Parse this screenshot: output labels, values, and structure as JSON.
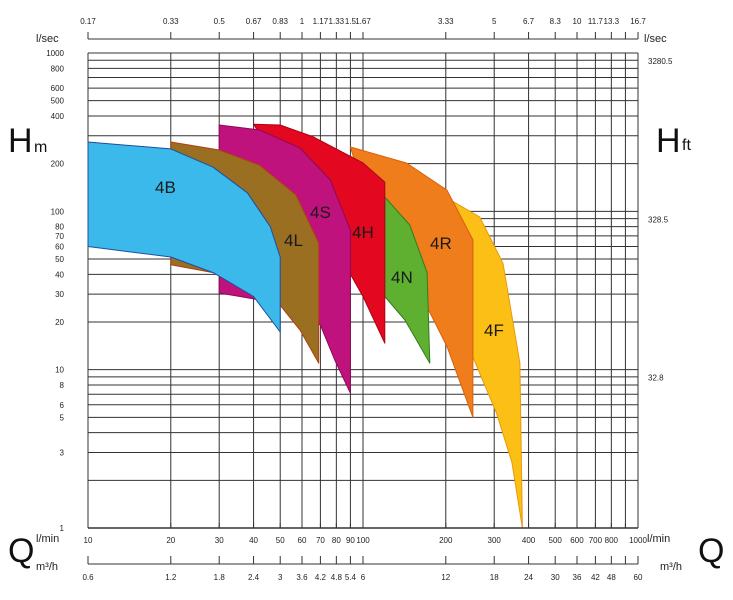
{
  "chart_data": {
    "type": "area",
    "title": "",
    "xscale": "log",
    "yscale": "log",
    "xlim": [
      10,
      1000
    ],
    "ylim": [
      1,
      1000
    ],
    "grid": true,
    "x_axis_bottom": {
      "unit": "l/min",
      "ticks": [
        10,
        20,
        30,
        40,
        50,
        60,
        70,
        80,
        90,
        100,
        200,
        300,
        400,
        500,
        600,
        700,
        800,
        900,
        1000
      ],
      "labels": [
        "10",
        "20",
        "30",
        "40",
        "50",
        "60",
        "70",
        "80",
        "90",
        "100",
        "200",
        "300",
        "400",
        "500",
        "600",
        "700",
        "800",
        "",
        "1000"
      ]
    },
    "x_axis_m3h": {
      "unit": "m³/h",
      "labels": [
        "0.6",
        "1.2",
        "1.8",
        "2.4",
        "3",
        "3.6",
        "4.2",
        "4.8",
        "5.4",
        "6",
        "12",
        "18",
        "24",
        "30",
        "36",
        "42",
        "48",
        "",
        "60"
      ]
    },
    "x_axis_top": {
      "unit": "l/sec",
      "labels": [
        "0.17",
        "0.33",
        "0.5",
        "0.67",
        "0.83",
        "1",
        "1.17",
        "1.33",
        "1.5",
        "1.67",
        "3.33",
        "5",
        "6.7",
        "8.3",
        "10",
        "11.7",
        "13.3",
        "",
        "16.7"
      ]
    },
    "y_axis_left": {
      "symbol": "H",
      "unit": "m",
      "ticks": [
        1000,
        800,
        600,
        500,
        400,
        200,
        100,
        80,
        70,
        60,
        50,
        40,
        30,
        20,
        10,
        8,
        6,
        5,
        3,
        1
      ],
      "labels": [
        "1000",
        "800",
        "600",
        "500",
        "400",
        "200",
        "100",
        "80",
        "70",
        "60",
        "50",
        "40",
        "30",
        "20",
        "10",
        "8",
        "6",
        "5",
        "3",
        "1"
      ]
    },
    "y_axis_right": {
      "symbol": "H",
      "unit": "ft",
      "ticks": [
        1000,
        100,
        10
      ],
      "labels": [
        "3280.5",
        "328.5",
        "32.8"
      ]
    },
    "q_symbol": "Q",
    "series": [
      {
        "name": "4F",
        "color": "#fbbf16",
        "stroke": "#e89a0c",
        "points": [
          [
            213,
            115
          ],
          [
            266,
            92
          ],
          [
            323,
            47
          ],
          [
            372,
            11
          ],
          [
            380,
            1
          ],
          [
            348,
            2.6
          ],
          [
            306,
            5.3
          ],
          [
            251,
            12
          ],
          [
            251,
            66
          ],
          [
            225,
            95
          ]
        ]
      },
      {
        "name": "4R",
        "color": "#ef7d1b",
        "stroke": "#d8600f",
        "points": [
          [
            90,
            255
          ],
          [
            144,
            202
          ],
          [
            202,
            136
          ],
          [
            251,
            66
          ],
          [
            251,
            5
          ],
          [
            202,
            14
          ],
          [
            175,
            23
          ],
          [
            136,
            37
          ],
          [
            120,
            49
          ]
        ]
      },
      {
        "name": "4N",
        "color": "#5fb030",
        "stroke": "#2f7d1e",
        "points": [
          [
            120,
            123
          ],
          [
            148,
            82
          ],
          [
            171,
            41
          ],
          [
            175,
            11
          ],
          [
            142,
            20.6
          ],
          [
            120,
            29
          ]
        ]
      },
      {
        "name": "4H",
        "color": "#e3071f",
        "stroke": "#a80615",
        "points": [
          [
            40,
            355
          ],
          [
            50,
            351
          ],
          [
            66,
            295
          ],
          [
            100,
            202
          ],
          [
            120,
            153
          ],
          [
            120,
            14.7
          ],
          [
            100,
            29
          ],
          [
            90,
            40
          ],
          [
            76,
            57
          ]
        ]
      },
      {
        "name": "4S",
        "color": "#c0127c",
        "stroke": "#8c0a58",
        "points": [
          [
            30,
            351
          ],
          [
            42,
            327
          ],
          [
            59,
            251
          ],
          [
            76,
            158
          ],
          [
            90,
            76
          ],
          [
            90,
            7.1
          ],
          [
            79,
            11.5
          ],
          [
            70,
            19.1
          ],
          [
            54,
            25.5
          ],
          [
            35.7,
            29
          ],
          [
            30,
            30.5
          ]
        ]
      },
      {
        "name": "4L",
        "color": "#9a6f22",
        "stroke": "#b0400f",
        "points": [
          [
            20,
            274
          ],
          [
            30,
            244
          ],
          [
            42,
            196
          ],
          [
            57,
            127
          ],
          [
            69,
            63
          ],
          [
            69,
            11
          ],
          [
            59,
            17.8
          ],
          [
            50,
            25.5
          ],
          [
            39,
            34
          ],
          [
            28.5,
            41
          ],
          [
            20,
            46
          ]
        ]
      },
      {
        "name": "4B",
        "color": "#3bb9eb",
        "stroke": "#1d4f9c",
        "points": [
          [
            10,
            274
          ],
          [
            20,
            248
          ],
          [
            28.5,
            190
          ],
          [
            38,
            131
          ],
          [
            46,
            80
          ],
          [
            50,
            51.5
          ],
          [
            50,
            17.3
          ],
          [
            40,
            29
          ],
          [
            28.5,
            41
          ],
          [
            20,
            51.5
          ],
          [
            10,
            60
          ]
        ]
      }
    ]
  }
}
